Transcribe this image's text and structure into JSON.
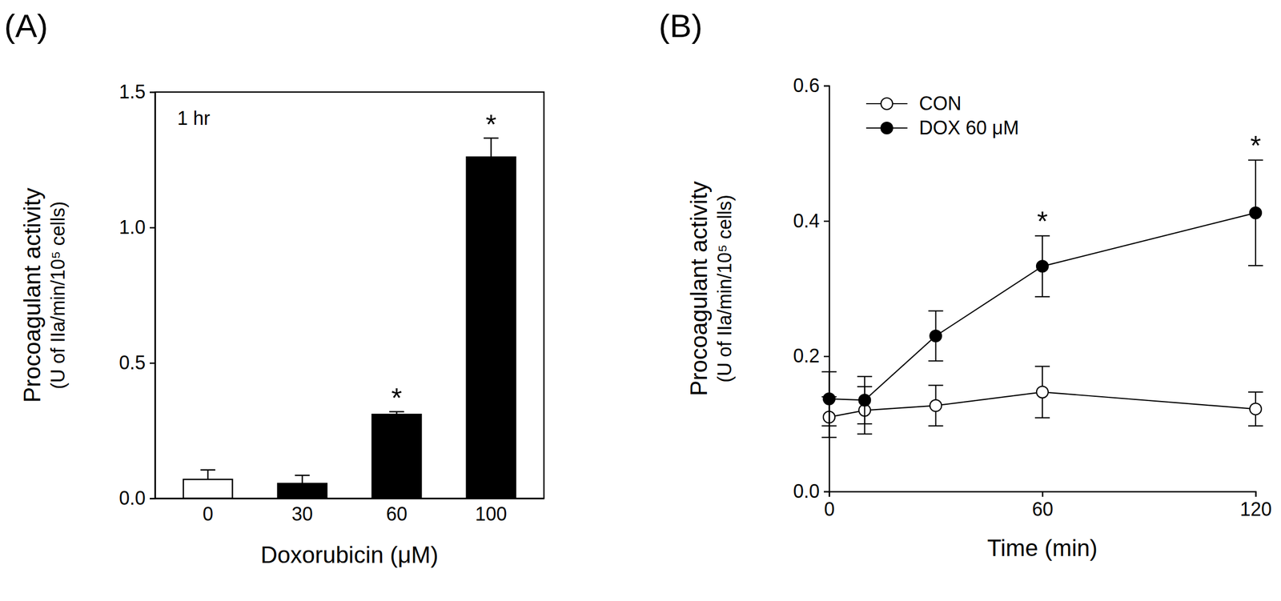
{
  "chart_data": [
    {
      "type": "bar",
      "title": "(A)",
      "annotation": "1 hr",
      "x_label": "Doxorubicin (μM)",
      "y_label": [
        "Procoagulant activity",
        "(U of IIa/min/10⁵ cells)"
      ],
      "categories": [
        "0",
        "30",
        "60",
        "100"
      ],
      "values": [
        0.07,
        0.055,
        0.31,
        1.26
      ],
      "errors": [
        0.035,
        0.03,
        0.01,
        0.07
      ],
      "significance": [
        null,
        null,
        "*",
        "*"
      ],
      "colors": [
        "#ffffff",
        "#000000",
        "#000000",
        "#000000"
      ],
      "ylim": [
        0,
        1.5
      ],
      "yticks": [
        {
          "value": 0,
          "label": "0.0"
        },
        {
          "value": 0.5,
          "label": "0.5"
        },
        {
          "value": 1,
          "label": "1.0"
        },
        {
          "value": 1.5,
          "label": "1.5"
        }
      ]
    },
    {
      "type": "line",
      "title": "(B)",
      "x_label": "Time (min)",
      "y_label": [
        "Procoagulant activity",
        "(U of IIa/min/10⁵ cells)"
      ],
      "x": [
        0,
        10,
        30,
        60,
        120
      ],
      "series": [
        {
          "name": "CON",
          "color": "#ffffff",
          "marker": "circle",
          "values": [
            0.11,
            0.12,
            0.127,
            0.147,
            0.122
          ],
          "errors": [
            0.03,
            0.035,
            0.03,
            0.038,
            0.025
          ]
        },
        {
          "name": "DOX 60 μM",
          "color": "#000000",
          "marker": "circle",
          "values": [
            0.137,
            0.135,
            0.23,
            0.333,
            0.412
          ],
          "errors": [
            0.04,
            0.035,
            0.037,
            0.045,
            0.078
          ],
          "significance": [
            null,
            null,
            null,
            "*",
            "*"
          ]
        }
      ],
      "xlim": [
        0,
        120
      ],
      "xticks": [
        0,
        60,
        120
      ],
      "ylim": [
        0,
        0.6
      ],
      "yticks": [
        {
          "value": 0,
          "label": "0.0"
        },
        {
          "value": 0.2,
          "label": "0.2"
        },
        {
          "value": 0.4,
          "label": "0.4"
        },
        {
          "value": 0.6,
          "label": "0.6"
        }
      ],
      "legend": "upper left"
    }
  ]
}
